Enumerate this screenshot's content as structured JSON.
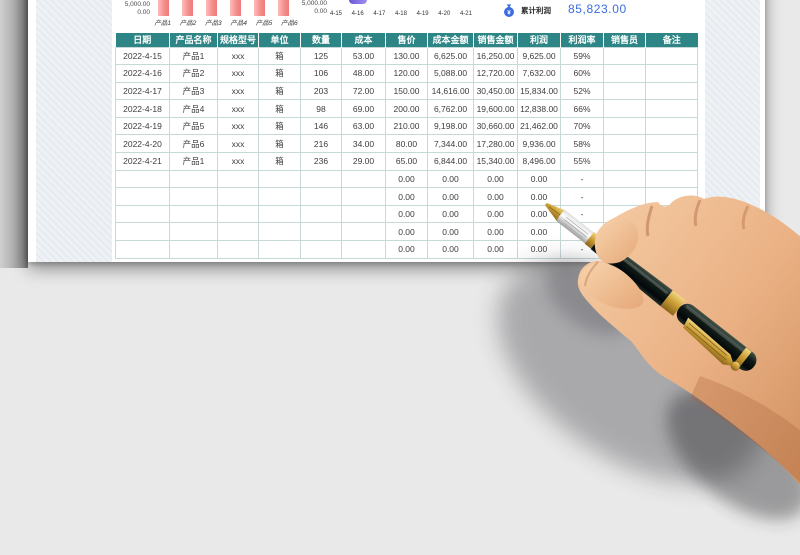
{
  "kpi": {
    "label": "累计利润",
    "value": "85,823.00",
    "value_color": "#3b6ce0"
  },
  "chart_data": {
    "charts": [
      {
        "type": "bar",
        "title": "",
        "categories": [
          "产品1",
          "产品2",
          "产品3",
          "产品4",
          "产品5",
          "产品6"
        ],
        "y_tick_labels": [
          "5,000.00",
          "0.00"
        ],
        "bar_color": "#F59090",
        "note": "bars cropped at top edge of screenshot; values not visible"
      },
      {
        "type": "line",
        "title": "",
        "x_labels": [
          "4-15",
          "4-16",
          "4-17",
          "4-18",
          "4-19",
          "4-20",
          "4-21"
        ],
        "y_tick_labels": [
          "5,000.00",
          "0.00"
        ],
        "note": "plot area cropped at top edge of screenshot; only axis labels visible"
      }
    ]
  },
  "table": {
    "columns": [
      "日期",
      "产品名称",
      "规格型号",
      "单位",
      "数量",
      "成本",
      "售价",
      "成本金额",
      "销售金额",
      "利润",
      "利润率",
      "销售员",
      "备注"
    ],
    "rows": [
      {
        "cells": [
          "2022-4-15",
          "产品1",
          "xxx",
          "箱",
          "125",
          "53.00",
          "130.00",
          "6,625.00",
          "16,250.00",
          "9,625.00",
          "59%",
          "",
          ""
        ]
      },
      {
        "cells": [
          "2022-4-16",
          "产品2",
          "xxx",
          "箱",
          "106",
          "48.00",
          "120.00",
          "5,088.00",
          "12,720.00",
          "7,632.00",
          "60%",
          "",
          ""
        ]
      },
      {
        "cells": [
          "2022-4-17",
          "产品3",
          "xxx",
          "箱",
          "203",
          "72.00",
          "150.00",
          "14,616.00",
          "30,450.00",
          "15,834.00",
          "52%",
          "",
          ""
        ]
      },
      {
        "cells": [
          "2022-4-18",
          "产品4",
          "xxx",
          "箱",
          "98",
          "69.00",
          "200.00",
          "6,762.00",
          "19,600.00",
          "12,838.00",
          "66%",
          "",
          ""
        ]
      },
      {
        "cells": [
          "2022-4-19",
          "产品5",
          "xxx",
          "箱",
          "146",
          "63.00",
          "210.00",
          "9,198.00",
          "30,660.00",
          "21,462.00",
          "70%",
          "",
          ""
        ]
      },
      {
        "cells": [
          "2022-4-20",
          "产品6",
          "xxx",
          "箱",
          "216",
          "34.00",
          "80.00",
          "7,344.00",
          "17,280.00",
          "9,936.00",
          "58%",
          "",
          ""
        ]
      },
      {
        "cells": [
          "2022-4-21",
          "产品1",
          "xxx",
          "箱",
          "236",
          "29.00",
          "65.00",
          "6,844.00",
          "15,340.00",
          "8,496.00",
          "55%",
          "",
          ""
        ]
      },
      {
        "cells": [
          "",
          "",
          "",
          "",
          "",
          "",
          "0.00",
          "0.00",
          "0.00",
          "0.00",
          "-",
          "",
          ""
        ]
      },
      {
        "cells": [
          "",
          "",
          "",
          "",
          "",
          "",
          "0.00",
          "0.00",
          "0.00",
          "0.00",
          "-",
          "",
          ""
        ]
      },
      {
        "cells": [
          "",
          "",
          "",
          "",
          "",
          "",
          "0.00",
          "0.00",
          "0.00",
          "0.00",
          "-",
          "",
          ""
        ]
      },
      {
        "cells": [
          "",
          "",
          "",
          "",
          "",
          "",
          "0.00",
          "0.00",
          "0.00",
          "0.00",
          "-",
          "",
          ""
        ]
      },
      {
        "cells": [
          "",
          "",
          "",
          "",
          "",
          "",
          "0.00",
          "0.00",
          "0.00",
          "0.00",
          "-",
          "",
          ""
        ]
      }
    ],
    "header_bg": "#2e8585"
  }
}
